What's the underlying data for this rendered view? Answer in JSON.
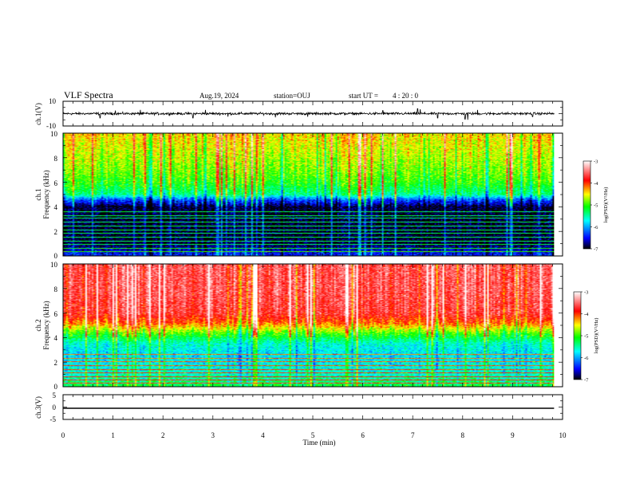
{
  "header": {
    "title": "VLF Spectra",
    "date": "Aug.19, 2024",
    "station": "station=OUJ",
    "start_ut_label": "start  UT =",
    "start_ut_value": "4 : 20 : 0"
  },
  "colorbar": {
    "label": "log(PSD)(V²/Hz)",
    "ticks": [
      "-3",
      "-4",
      "-5",
      "-6",
      "-7"
    ],
    "range": [
      -7,
      -3
    ],
    "colors": [
      "#000000",
      "#0000ff",
      "#00ffff",
      "#00ff00",
      "#ffff00",
      "#ff0000",
      "#ffffff"
    ]
  },
  "x_axis": {
    "label": "Time (min)",
    "ticks": [
      "0",
      "1",
      "2",
      "3",
      "4",
      "5",
      "6",
      "7",
      "8",
      "9",
      "10"
    ]
  },
  "chart_data": [
    {
      "type": "line",
      "panel": "ch1-waveform",
      "ylabel": "ch.1(V)",
      "ylim": [
        -10,
        10
      ],
      "yticks": [
        "10",
        "-10"
      ],
      "x_range_min": [
        0,
        9.83
      ],
      "baseline": 0,
      "noise_amplitude": 1.2,
      "spikes": [
        {
          "t": 0.74,
          "v": -3.5
        },
        {
          "t": 1.05,
          "v": 2.5
        },
        {
          "t": 1.55,
          "v": 3.0
        },
        {
          "t": 2.6,
          "v": -3.5
        },
        {
          "t": 2.85,
          "v": 3.0
        },
        {
          "t": 3.3,
          "v": -2.5
        },
        {
          "t": 4.25,
          "v": -3.0
        },
        {
          "t": 4.9,
          "v": -2.5
        },
        {
          "t": 6.4,
          "v": 2.5
        },
        {
          "t": 7.1,
          "v": 4.0
        },
        {
          "t": 7.15,
          "v": 3.5
        },
        {
          "t": 7.5,
          "v": -3.5
        },
        {
          "t": 8.05,
          "v": -4.5
        },
        {
          "t": 8.1,
          "v": -5.0
        },
        {
          "t": 8.3,
          "v": 3.0
        },
        {
          "t": 9.4,
          "v": -2.5
        }
      ]
    },
    {
      "type": "heatmap",
      "panel": "ch1-spectrogram",
      "ylabel": "ch.1 Frequency (kHz)",
      "ylabel_line1": "ch.1",
      "ylabel_line2": "Frequency (kHz)",
      "ylim": [
        0,
        10
      ],
      "yticks": [
        "0",
        "2",
        "4",
        "6",
        "8",
        "10"
      ],
      "x_range_min": [
        0,
        9.83
      ],
      "log_psd_profile": [
        {
          "f": 0.0,
          "v": -6.4
        },
        {
          "f": 1.0,
          "v": -6.9
        },
        {
          "f": 2.5,
          "v": -6.9
        },
        {
          "f": 4.0,
          "v": -6.9
        },
        {
          "f": 4.6,
          "v": -6.2
        },
        {
          "f": 5.0,
          "v": -5.4
        },
        {
          "f": 6.0,
          "v": -5.0
        },
        {
          "f": 7.0,
          "v": -4.8
        },
        {
          "f": 8.5,
          "v": -4.6
        },
        {
          "f": 10.0,
          "v": -4.4
        }
      ],
      "horizontal_lines_khz": [
        0.3,
        0.6,
        0.9,
        1.2,
        1.5,
        1.8,
        2.1,
        2.4,
        2.75,
        3.05,
        3.3,
        3.6
      ]
    },
    {
      "type": "heatmap",
      "panel": "ch2-spectrogram",
      "ylabel": "ch.2 Frequency (kHz)",
      "ylabel_line1": "ch.2",
      "ylabel_line2": "Frequency (kHz)",
      "ylim": [
        0,
        10
      ],
      "yticks": [
        "0",
        "2",
        "4",
        "6",
        "8",
        "10"
      ],
      "x_range_min": [
        0,
        9.83
      ],
      "log_psd_profile": [
        {
          "f": 0.0,
          "v": -5.2
        },
        {
          "f": 1.0,
          "v": -5.6
        },
        {
          "f": 2.5,
          "v": -5.8
        },
        {
          "f": 3.5,
          "v": -5.6
        },
        {
          "f": 4.3,
          "v": -5.0
        },
        {
          "f": 5.2,
          "v": -4.1
        },
        {
          "f": 6.0,
          "v": -3.7
        },
        {
          "f": 8.0,
          "v": -3.6
        },
        {
          "f": 10.0,
          "v": -3.6
        }
      ],
      "horizontal_lines_khz": [
        0.25,
        0.5,
        0.8,
        1.1,
        1.4,
        1.7,
        2.0,
        2.3,
        2.6
      ]
    },
    {
      "type": "line",
      "panel": "ch3-waveform",
      "ylabel": "ch.3(V)",
      "ylim": [
        -5,
        5
      ],
      "yticks": [
        "5",
        "0",
        "-5"
      ],
      "x_range_min": [
        0,
        9.83
      ],
      "baseline": -0.5,
      "noise_amplitude": 0,
      "spikes": []
    }
  ]
}
